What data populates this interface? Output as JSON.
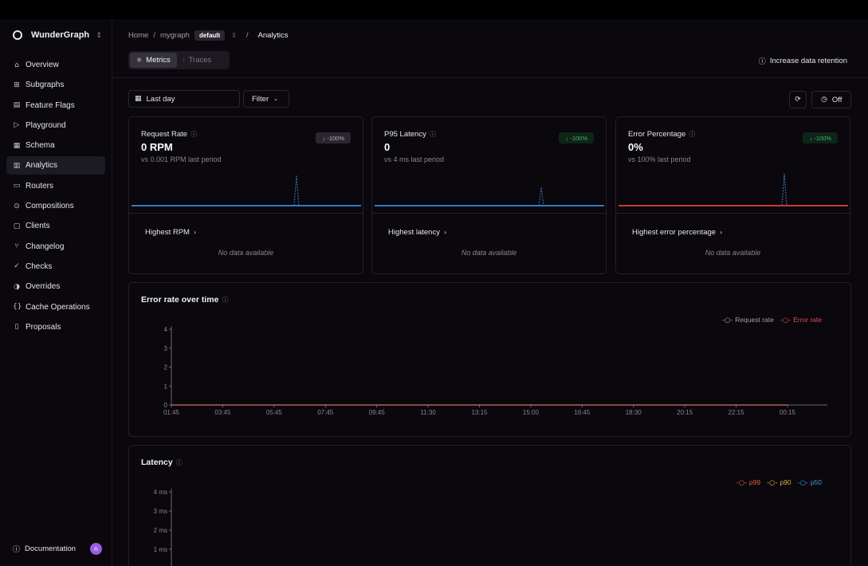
{
  "sidebar": {
    "brand": "WunderGraph",
    "items": [
      {
        "label": "Overview",
        "icon": "home-icon",
        "glyph": "⌂"
      },
      {
        "label": "Subgraphs",
        "icon": "grid-icon",
        "glyph": "⊞"
      },
      {
        "label": "Feature Flags",
        "icon": "flag-icon",
        "glyph": "▤"
      },
      {
        "label": "Playground",
        "icon": "play-icon",
        "glyph": "▷"
      },
      {
        "label": "Schema",
        "icon": "file-icon",
        "glyph": "▦"
      },
      {
        "label": "Analytics",
        "icon": "bar-chart-icon",
        "glyph": "▥"
      },
      {
        "label": "Routers",
        "icon": "server-icon",
        "glyph": "▭"
      },
      {
        "label": "Compositions",
        "icon": "merge-icon",
        "glyph": "⊙"
      },
      {
        "label": "Clients",
        "icon": "devices-icon",
        "glyph": "▢"
      },
      {
        "label": "Changelog",
        "icon": "git-branch-icon",
        "glyph": "⑂"
      },
      {
        "label": "Checks",
        "icon": "check-circle-icon",
        "glyph": "✓"
      },
      {
        "label": "Overrides",
        "icon": "toggle-icon",
        "glyph": "◑"
      },
      {
        "label": "Cache Operations",
        "icon": "braces-icon",
        "glyph": "{}"
      },
      {
        "label": "Proposals",
        "icon": "clipboard-icon",
        "glyph": "▯"
      }
    ],
    "active_index": 5,
    "documentation": "Documentation",
    "avatar_initial": "n"
  },
  "breadcrumb": {
    "home": "Home",
    "graph": "mygraph",
    "namespace": "default",
    "current": "Analytics"
  },
  "tabs": [
    {
      "label": "Metrics",
      "icon": "metrics-icon"
    },
    {
      "label": "Traces",
      "icon": "traces-icon"
    }
  ],
  "retention_link": "Increase data retention",
  "toolbar": {
    "date_range": "Last day",
    "filter": "Filter",
    "auto_refresh": "Off"
  },
  "cards": [
    {
      "title": "Request Rate",
      "value": "0 RPM",
      "sub": "vs 0.001 RPM last period",
      "delta": "↓ -100%",
      "delta_style": "grey",
      "link": "Highest RPM",
      "nodata": "No data available",
      "line_color": "#2f7fc1",
      "spike_color": "#2f7fc1"
    },
    {
      "title": "P95 Latency",
      "value": "0",
      "sub": "vs 4 ms last period",
      "delta": "↓ -100%",
      "delta_style": "green",
      "link": "Highest latency",
      "nodata": "No data available",
      "line_color": "#2f7fc1",
      "spike_color": "#2f7fc1"
    },
    {
      "title": "Error Percentage",
      "value": "0%",
      "sub": "vs 100% last period",
      "delta": "↓ -100%",
      "delta_style": "green",
      "link": "Highest error percentage",
      "nodata": "No data available",
      "line_color": "#c23a3a",
      "spike_color": "#4a7fb0"
    }
  ],
  "error_chart": {
    "title": "Error rate over time",
    "legend": [
      {
        "name": "Request rate",
        "color": "#a39fab"
      },
      {
        "name": "Error rate",
        "color": "#d9534f"
      }
    ]
  },
  "latency_chart": {
    "title": "Latency",
    "legend": [
      {
        "name": "p99",
        "color": "#e0663a"
      },
      {
        "name": "p90",
        "color": "#e0b03a"
      },
      {
        "name": "p50",
        "color": "#3a9ee0"
      }
    ]
  },
  "chart_data": [
    {
      "type": "line",
      "title": "Error rate over time",
      "x": [
        "01:45",
        "03:45",
        "05:45",
        "07:45",
        "09:45",
        "11:30",
        "13:15",
        "15:00",
        "16:45",
        "18:30",
        "20:15",
        "22:15",
        "00:15"
      ],
      "series": [
        {
          "name": "Request rate",
          "values": [
            0,
            0,
            0,
            0,
            0,
            0,
            0,
            0,
            0,
            0,
            0,
            0,
            0
          ]
        },
        {
          "name": "Error rate",
          "values": [
            0,
            0,
            0,
            0,
            0,
            0,
            0,
            0,
            0,
            0,
            0,
            0,
            0
          ]
        }
      ],
      "yticks": [
        "0",
        "1",
        "2",
        "3",
        "4"
      ],
      "ylim": [
        0,
        4
      ],
      "grid": false,
      "legend": "top-right"
    },
    {
      "type": "line",
      "title": "Latency",
      "series": [
        {
          "name": "p99",
          "values": []
        },
        {
          "name": "p90",
          "values": []
        },
        {
          "name": "p50",
          "values": []
        }
      ],
      "yticks": [
        "1 ms",
        "2 ms",
        "3 ms",
        "4 ms"
      ],
      "ylim": [
        0,
        4
      ],
      "legend": "top-right"
    }
  ]
}
